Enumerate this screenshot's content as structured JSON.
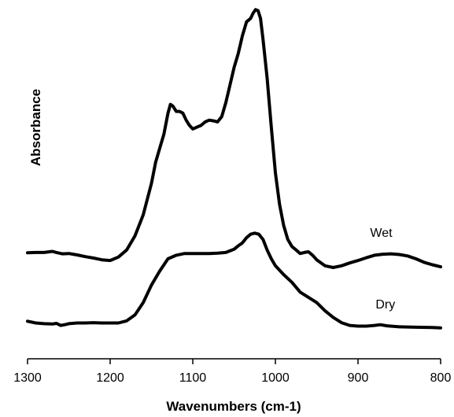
{
  "chart_data": {
    "type": "line",
    "xlabel": "Wavenumbers (cm-1)",
    "ylabel": "Absorbance",
    "xlim": [
      1300,
      800
    ],
    "x_reversed": true,
    "ylim": [
      0,
      1
    ],
    "y_ticks_shown": false,
    "grid": false,
    "xticks": [
      1300,
      1200,
      1100,
      1000,
      900,
      800
    ],
    "series": [
      {
        "name": "Wet",
        "points": [
          [
            1300,
            0.302
          ],
          [
            1290,
            0.303
          ],
          [
            1280,
            0.303
          ],
          [
            1270,
            0.306
          ],
          [
            1265,
            0.303
          ],
          [
            1258,
            0.299
          ],
          [
            1250,
            0.3
          ],
          [
            1240,
            0.296
          ],
          [
            1230,
            0.291
          ],
          [
            1220,
            0.287
          ],
          [
            1210,
            0.282
          ],
          [
            1200,
            0.28
          ],
          [
            1190,
            0.29
          ],
          [
            1180,
            0.31
          ],
          [
            1170,
            0.35
          ],
          [
            1160,
            0.41
          ],
          [
            1150,
            0.5
          ],
          [
            1145,
            0.56
          ],
          [
            1140,
            0.6
          ],
          [
            1135,
            0.64
          ],
          [
            1130,
            0.7
          ],
          [
            1127,
            0.725
          ],
          [
            1124,
            0.72
          ],
          [
            1120,
            0.705
          ],
          [
            1116,
            0.705
          ],
          [
            1112,
            0.7
          ],
          [
            1108,
            0.68
          ],
          [
            1104,
            0.665
          ],
          [
            1100,
            0.655
          ],
          [
            1095,
            0.66
          ],
          [
            1090,
            0.665
          ],
          [
            1085,
            0.675
          ],
          [
            1080,
            0.68
          ],
          [
            1075,
            0.678
          ],
          [
            1070,
            0.675
          ],
          [
            1065,
            0.69
          ],
          [
            1060,
            0.73
          ],
          [
            1055,
            0.78
          ],
          [
            1050,
            0.83
          ],
          [
            1045,
            0.87
          ],
          [
            1040,
            0.92
          ],
          [
            1035,
            0.96
          ],
          [
            1030,
            0.97
          ],
          [
            1027,
            0.985
          ],
          [
            1024,
            0.995
          ],
          [
            1021,
            0.992
          ],
          [
            1018,
            0.97
          ],
          [
            1015,
            0.91
          ],
          [
            1010,
            0.8
          ],
          [
            1005,
            0.66
          ],
          [
            1000,
            0.53
          ],
          [
            995,
            0.44
          ],
          [
            990,
            0.38
          ],
          [
            985,
            0.34
          ],
          [
            980,
            0.32
          ],
          [
            975,
            0.31
          ],
          [
            970,
            0.3
          ],
          [
            965,
            0.303
          ],
          [
            960,
            0.305
          ],
          [
            955,
            0.295
          ],
          [
            950,
            0.282
          ],
          [
            940,
            0.265
          ],
          [
            930,
            0.26
          ],
          [
            920,
            0.265
          ],
          [
            910,
            0.273
          ],
          [
            900,
            0.28
          ],
          [
            890,
            0.288
          ],
          [
            880,
            0.295
          ],
          [
            870,
            0.298
          ],
          [
            860,
            0.299
          ],
          [
            850,
            0.297
          ],
          [
            840,
            0.293
          ],
          [
            830,
            0.285
          ],
          [
            820,
            0.275
          ],
          [
            810,
            0.268
          ],
          [
            800,
            0.262
          ]
        ]
      },
      {
        "name": "Dry",
        "points": [
          [
            1300,
            0.107
          ],
          [
            1290,
            0.102
          ],
          [
            1280,
            0.1
          ],
          [
            1270,
            0.099
          ],
          [
            1265,
            0.101
          ],
          [
            1260,
            0.095
          ],
          [
            1255,
            0.097
          ],
          [
            1250,
            0.1
          ],
          [
            1240,
            0.102
          ],
          [
            1230,
            0.102
          ],
          [
            1220,
            0.103
          ],
          [
            1210,
            0.102
          ],
          [
            1200,
            0.102
          ],
          [
            1190,
            0.102
          ],
          [
            1180,
            0.108
          ],
          [
            1170,
            0.125
          ],
          [
            1160,
            0.16
          ],
          [
            1150,
            0.21
          ],
          [
            1140,
            0.25
          ],
          [
            1130,
            0.285
          ],
          [
            1120,
            0.295
          ],
          [
            1110,
            0.3
          ],
          [
            1100,
            0.3
          ],
          [
            1090,
            0.3
          ],
          [
            1080,
            0.3
          ],
          [
            1070,
            0.301
          ],
          [
            1060,
            0.303
          ],
          [
            1050,
            0.312
          ],
          [
            1045,
            0.322
          ],
          [
            1040,
            0.33
          ],
          [
            1035,
            0.345
          ],
          [
            1030,
            0.355
          ],
          [
            1025,
            0.358
          ],
          [
            1020,
            0.355
          ],
          [
            1015,
            0.34
          ],
          [
            1010,
            0.31
          ],
          [
            1005,
            0.285
          ],
          [
            1000,
            0.265
          ],
          [
            990,
            0.24
          ],
          [
            980,
            0.218
          ],
          [
            970,
            0.19
          ],
          [
            960,
            0.175
          ],
          [
            950,
            0.16
          ],
          [
            940,
            0.137
          ],
          [
            930,
            0.118
          ],
          [
            920,
            0.103
          ],
          [
            910,
            0.095
          ],
          [
            900,
            0.093
          ],
          [
            890,
            0.093
          ],
          [
            880,
            0.095
          ],
          [
            873,
            0.097
          ],
          [
            865,
            0.094
          ],
          [
            850,
            0.091
          ],
          [
            830,
            0.09
          ],
          [
            810,
            0.089
          ],
          [
            800,
            0.088
          ]
        ]
      }
    ]
  }
}
